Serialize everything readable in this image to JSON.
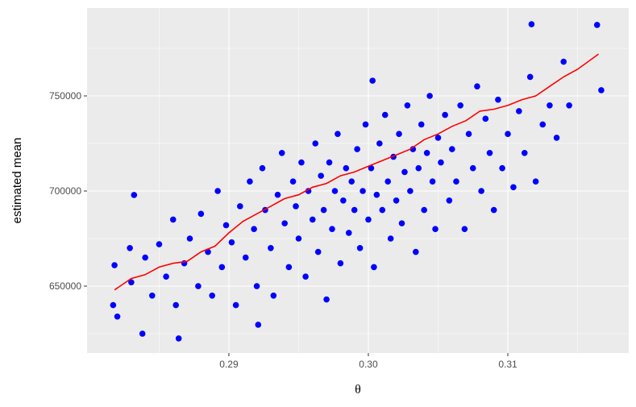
{
  "chart_data": {
    "type": "scatter",
    "x_label": "θ",
    "y_label": "estimated mean",
    "xlim": [
      0.27983,
      0.31867
    ],
    "ylim": [
      614831,
      796186
    ],
    "xticks": [
      0.29,
      {
        "value": 0.3,
        "label": "0.30"
      },
      0.31
    ],
    "yticks": [
      650000,
      700000,
      750000
    ],
    "x_minor_ticks": [
      0.285,
      0.295,
      0.305,
      0.315
    ],
    "y_minor_ticks": [
      625000,
      675000,
      725000,
      775000
    ],
    "grid": true,
    "series": [
      {
        "type": "point",
        "color": "#0000ff",
        "x": [
          0.2818,
          0.2817,
          0.282,
          0.2829,
          0.2832,
          0.2838,
          0.2864,
          0.3164,
          0.3167,
          0.3117,
          0.2921,
          0.3003,
          0.283,
          0.284,
          0.2845,
          0.285,
          0.2855,
          0.286,
          0.2862,
          0.2868,
          0.2872,
          0.2878,
          0.288,
          0.2885,
          0.2888,
          0.2892,
          0.2895,
          0.2898,
          0.2902,
          0.2905,
          0.2908,
          0.2912,
          0.2915,
          0.2918,
          0.292,
          0.2924,
          0.2926,
          0.293,
          0.2932,
          0.2935,
          0.2938,
          0.294,
          0.2943,
          0.2946,
          0.2948,
          0.295,
          0.2952,
          0.2955,
          0.2957,
          0.296,
          0.2962,
          0.2964,
          0.2966,
          0.2968,
          0.297,
          0.2972,
          0.2974,
          0.2976,
          0.2978,
          0.298,
          0.2982,
          0.2984,
          0.2986,
          0.2988,
          0.299,
          0.2992,
          0.2994,
          0.2996,
          0.2998,
          0.3,
          0.3002,
          0.3004,
          0.3006,
          0.3008,
          0.301,
          0.3012,
          0.3014,
          0.3016,
          0.3018,
          0.302,
          0.3022,
          0.3024,
          0.3026,
          0.3028,
          0.303,
          0.3032,
          0.3034,
          0.3036,
          0.3038,
          0.304,
          0.3042,
          0.3044,
          0.3046,
          0.3048,
          0.305,
          0.3052,
          0.3055,
          0.3058,
          0.306,
          0.3063,
          0.3066,
          0.3069,
          0.3072,
          0.3075,
          0.3078,
          0.3081,
          0.3084,
          0.3087,
          0.309,
          0.3093,
          0.3096,
          0.31,
          0.3104,
          0.3108,
          0.3112,
          0.3116,
          0.312,
          0.3125,
          0.313,
          0.3135,
          0.314,
          0.3144
        ],
        "y": [
          661000,
          640000,
          634000,
          670000,
          697900,
          625000,
          622500,
          787300,
          753000,
          787700,
          629700,
          758000,
          652000,
          665000,
          645000,
          672000,
          655000,
          685000,
          640000,
          662000,
          675000,
          650000,
          688000,
          668000,
          645000,
          700000,
          660000,
          682000,
          673000,
          640000,
          692000,
          665000,
          705000,
          680000,
          650000,
          712000,
          690000,
          670000,
          645000,
          698000,
          720000,
          683000,
          660000,
          705000,
          692000,
          675000,
          715000,
          655000,
          700000,
          685000,
          725000,
          668000,
          708000,
          690000,
          643000,
          715000,
          680000,
          700000,
          730000,
          662000,
          695000,
          712000,
          678000,
          705000,
          690000,
          722000,
          670000,
          700000,
          735000,
          685000,
          712000,
          660000,
          698000,
          725000,
          690000,
          740000,
          705000,
          675000,
          718000,
          695000,
          730000,
          683000,
          710000,
          745000,
          700000,
          722000,
          668000,
          712000,
          735000,
          690000,
          720000,
          750000,
          705000,
          680000,
          728000,
          715000,
          740000,
          695000,
          722000,
          705000,
          745000,
          680000,
          730000,
          712000,
          755000,
          700000,
          738000,
          720000,
          690000,
          748000,
          712000,
          730000,
          702000,
          742000,
          720000,
          760000,
          705000,
          735000,
          745000,
          728000,
          768000,
          745000
        ]
      },
      {
        "type": "line",
        "color": "#ff0000",
        "x": [
          0.2818,
          0.2822,
          0.283,
          0.284,
          0.285,
          0.286,
          0.287,
          0.288,
          0.289,
          0.29,
          0.291,
          0.292,
          0.293,
          0.294,
          0.295,
          0.296,
          0.297,
          0.298,
          0.299,
          0.3,
          0.301,
          0.302,
          0.303,
          0.304,
          0.305,
          0.306,
          0.307,
          0.308,
          0.309,
          0.31,
          0.311,
          0.312,
          0.313,
          0.314,
          0.315,
          0.3165
        ],
        "y": [
          648000,
          650000,
          654000,
          656000,
          660000,
          662000,
          663000,
          668000,
          671000,
          678000,
          684000,
          688000,
          692000,
          696000,
          698000,
          702000,
          704000,
          708000,
          710000,
          713000,
          716000,
          719000,
          722000,
          727000,
          730000,
          734000,
          737000,
          742000,
          743000,
          745000,
          748000,
          750000,
          755000,
          760000,
          764000,
          772000
        ]
      }
    ]
  }
}
